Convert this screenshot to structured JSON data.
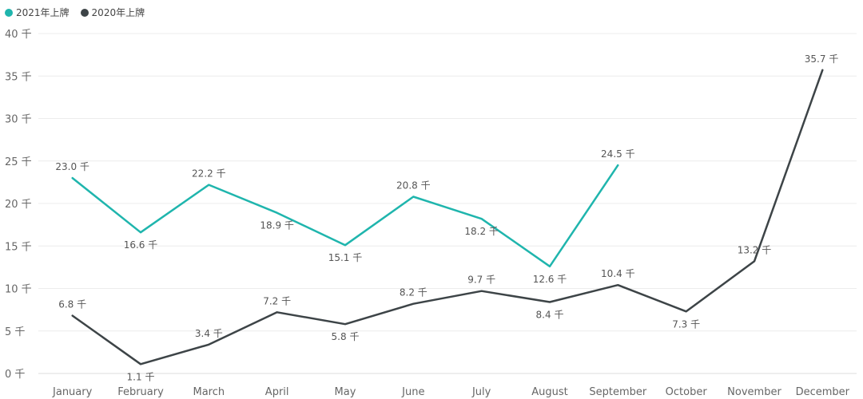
{
  "chart_data": {
    "type": "line",
    "title": "",
    "xlabel": "",
    "ylabel": "",
    "categories": [
      "January",
      "February",
      "March",
      "April",
      "May",
      "June",
      "July",
      "August",
      "September",
      "October",
      "November",
      "December"
    ],
    "y_ticks": [
      "0 千",
      "5 千",
      "10 千",
      "15 千",
      "20 千",
      "25 千",
      "30 千",
      "35 千",
      "40 千"
    ],
    "ylim": [
      0,
      40
    ],
    "grid": true,
    "legend_position": "top-left",
    "series": [
      {
        "name": "2021年上牌",
        "color": "#1fb5ad",
        "values": [
          23.0,
          16.6,
          22.2,
          18.9,
          15.1,
          20.8,
          18.2,
          12.6,
          24.5,
          null,
          null,
          null
        ],
        "labels": [
          "23.0 千",
          "16.6 千",
          "22.2 千",
          "18.9 千",
          "15.1 千",
          "20.8 千",
          "18.2 千",
          "12.6 千",
          "24.5 千",
          "",
          "",
          ""
        ]
      },
      {
        "name": "2020年上牌",
        "color": "#3d4447",
        "values": [
          6.8,
          1.1,
          3.4,
          7.2,
          5.8,
          8.2,
          9.7,
          8.4,
          10.4,
          7.3,
          13.2,
          35.7
        ],
        "labels": [
          "6.8 千",
          "1.1 千",
          "3.4 千",
          "7.2 千",
          "5.8 千",
          "8.2 千",
          "9.7 千",
          "8.4 千",
          "10.4 千",
          "7.3 千",
          "13.2 千",
          "35.7 千"
        ]
      }
    ]
  }
}
